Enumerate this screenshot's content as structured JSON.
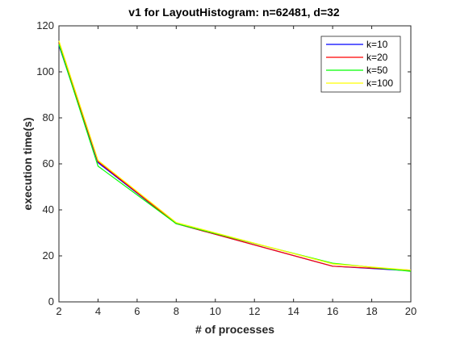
{
  "chart_data": {
    "type": "line",
    "title": "v1 for LayoutHistogram: n=62481, d=32",
    "xlabel": "# of processes",
    "ylabel": "execution time(s)",
    "xlim": [
      2,
      20
    ],
    "ylim": [
      0,
      120
    ],
    "xticks": [
      2,
      4,
      6,
      8,
      10,
      12,
      14,
      16,
      18,
      20
    ],
    "yticks": [
      0,
      20,
      40,
      60,
      80,
      100,
      120
    ],
    "grid": false,
    "legend_position": "top-right",
    "x": [
      2,
      4,
      8,
      16,
      20
    ],
    "series": [
      {
        "name": "k=10",
        "color": "#0000ff",
        "values": [
          111.5,
          60.5,
          34.0,
          15.5,
          13.5
        ]
      },
      {
        "name": "k=20",
        "color": "#ff0000",
        "values": [
          112.5,
          61.0,
          34.0,
          15.5,
          13.8
        ]
      },
      {
        "name": "k=50",
        "color": "#00ff00",
        "values": [
          112.0,
          59.0,
          34.0,
          16.8,
          13.3
        ]
      },
      {
        "name": "k=100",
        "color": "#ffff00",
        "values": [
          113.5,
          61.5,
          34.5,
          16.5,
          13.8
        ]
      }
    ]
  }
}
